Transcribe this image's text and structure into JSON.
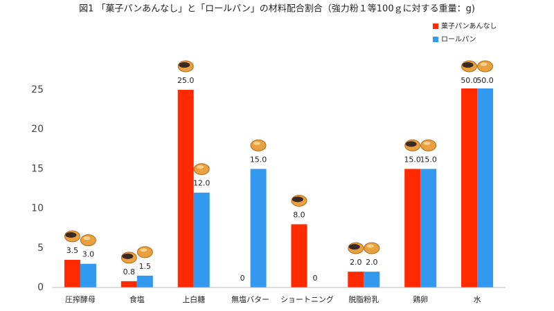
{
  "chart_data": {
    "type": "bar",
    "title": "図1 「菓子パンあんなし」と「ロールパン」の材料配合割合（強力粉１等100ｇに対する重量：g)",
    "categories": [
      "圧搾酵母",
      "食塩",
      "上白糖",
      "無塩バター",
      "ショートニング",
      "脱脂粉乳",
      "鶏卵",
      "水"
    ],
    "series": [
      {
        "name": "菓子パンあんなし",
        "color": "#ff2a00",
        "values": [
          3.5,
          0.8,
          25,
          0,
          8,
          2,
          15,
          50
        ],
        "value_labels": [
          "3.5",
          "0.8",
          "25.0",
          "0",
          "8.0",
          "2.0",
          "15.0",
          "50.0"
        ]
      },
      {
        "name": "ロールパン",
        "color": "#3399ee",
        "values": [
          3,
          1.5,
          12,
          15,
          0,
          2,
          15,
          50
        ],
        "value_labels": [
          "3.0",
          "1.5",
          "12.0",
          "15.0",
          "0",
          "2.0",
          "15.0",
          "50.0"
        ]
      }
    ],
    "ylim": [
      0,
      25
    ],
    "yticks": [
      0,
      5,
      10,
      15,
      20,
      25
    ],
    "grid": false,
    "legend": "top-right"
  }
}
